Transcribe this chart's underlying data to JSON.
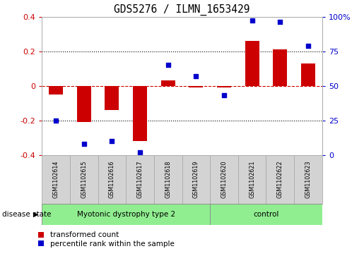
{
  "title": "GDS5276 / ILMN_1653429",
  "samples": [
    "GSM1102614",
    "GSM1102615",
    "GSM1102616",
    "GSM1102617",
    "GSM1102618",
    "GSM1102619",
    "GSM1102620",
    "GSM1102621",
    "GSM1102622",
    "GSM1102623"
  ],
  "red_values": [
    -0.05,
    -0.21,
    -0.14,
    -0.32,
    0.03,
    -0.01,
    -0.01,
    0.26,
    0.21,
    0.13
  ],
  "blue_values": [
    25,
    8,
    10,
    2,
    65,
    57,
    43,
    97,
    96,
    79
  ],
  "ylim_left": [
    -0.4,
    0.4
  ],
  "ylim_right": [
    0,
    100
  ],
  "yticks_left": [
    -0.4,
    -0.2,
    0.0,
    0.2,
    0.4
  ],
  "yticks_right": [
    0,
    25,
    50,
    75,
    100
  ],
  "yticklabels_right": [
    "0",
    "25",
    "50",
    "75",
    "100%"
  ],
  "red_color": "#cc0000",
  "blue_color": "#0000cc",
  "dotted_line_color": "#000000",
  "group1_label": "Myotonic dystrophy type 2",
  "group2_label": "control",
  "group1_indices": [
    0,
    1,
    2,
    3,
    4,
    5
  ],
  "group2_indices": [
    6,
    7,
    8,
    9
  ],
  "disease_state_label": "disease state",
  "legend_red": "transformed count",
  "legend_blue": "percentile rank within the sample",
  "label_bg_color": "#d3d3d3",
  "group_color": "#90ee90",
  "bar_width": 0.5,
  "blue_marker_size": 18
}
